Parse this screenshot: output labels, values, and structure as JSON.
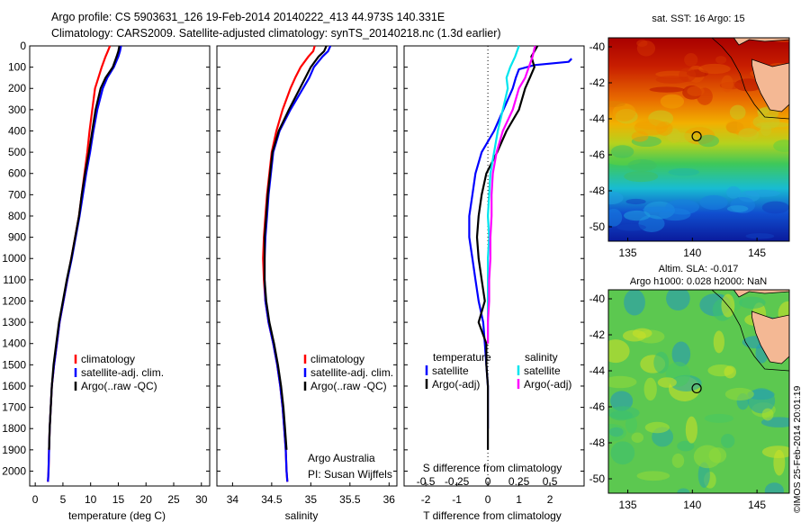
{
  "header": {
    "line1": "Argo profile: CS 5903631_126 19-Feb-2014 20140222_413 44.973S 140.331E",
    "line2": "Climatology: CARS2009. Satellite-adjusted climatology: synTS_20140218.nc (1.3d earlier)"
  },
  "side_label": "©IMOS 25-Feb-2014 20:01:19",
  "colors": {
    "climatology": "#ff0000",
    "satellite": "#0000ff",
    "argo": "#000000",
    "cyan": "#00e5ee",
    "magenta": "#ff00ff"
  },
  "chart_data": [
    {
      "type": "line",
      "panel": "temperature",
      "xlabel": "temperature (deg C)",
      "ylabel": "",
      "xlim": [
        -1,
        31.5
      ],
      "ylim": [
        2070,
        0
      ],
      "xticks": [
        0,
        5,
        10,
        15,
        20,
        25,
        30
      ],
      "yticks": [
        0,
        100,
        200,
        300,
        400,
        500,
        600,
        700,
        800,
        900,
        1000,
        1100,
        1200,
        1300,
        1400,
        1500,
        1600,
        1700,
        1800,
        1900,
        2000
      ],
      "legend": [
        "climatology",
        "satellite-adj. clim.",
        "Argo(..raw -QC)"
      ],
      "series": [
        {
          "name": "climatology",
          "x": [
            13.5,
            13.1,
            12.7,
            12.0,
            11.4,
            10.8,
            10.3,
            9.8,
            9.4,
            8.9,
            8.4,
            7.9,
            7.2,
            6.5,
            5.8,
            5.1,
            4.4,
            3.9,
            3.4,
            3.0,
            2.8,
            2.6,
            2.5,
            2.4,
            2.3
          ],
          "depth": [
            0,
            25,
            50,
            100,
            150,
            200,
            300,
            400,
            500,
            600,
            700,
            800,
            900,
            1000,
            1100,
            1200,
            1300,
            1400,
            1500,
            1600,
            1700,
            1800,
            1900,
            2000,
            2050
          ]
        },
        {
          "name": "satellite-adj. clim.",
          "x": [
            15.5,
            15.3,
            15.0,
            14.2,
            13.0,
            12.2,
            11.2,
            10.5,
            9.9,
            9.2,
            8.6,
            8.0,
            7.3,
            6.6,
            5.8,
            5.1,
            4.4,
            3.9,
            3.4,
            3.0,
            2.8,
            2.6,
            2.5,
            2.4,
            2.3
          ],
          "depth": [
            0,
            25,
            50,
            100,
            150,
            200,
            300,
            400,
            500,
            600,
            700,
            800,
            900,
            1000,
            1100,
            1200,
            1300,
            1400,
            1500,
            1600,
            1700,
            1800,
            1900,
            2000,
            2050
          ]
        },
        {
          "name": "Argo(..raw -QC)",
          "x": [
            15.2,
            15.0,
            14.7,
            14.0,
            12.7,
            11.8,
            10.9,
            10.3,
            9.7,
            9.0,
            8.4,
            7.9,
            7.2,
            6.5,
            5.7,
            5.0,
            4.3,
            3.8,
            3.3,
            3.0,
            2.8,
            2.6,
            2.5
          ],
          "depth": [
            0,
            25,
            50,
            100,
            150,
            200,
            300,
            400,
            500,
            600,
            700,
            800,
            900,
            1000,
            1100,
            1200,
            1300,
            1400,
            1500,
            1600,
            1700,
            1800,
            1900
          ]
        }
      ]
    },
    {
      "type": "line",
      "panel": "salinity",
      "xlabel": "salinity",
      "ylabel": "",
      "xlim": [
        33.8,
        36.1
      ],
      "ylim": [
        2070,
        0
      ],
      "xticks": [
        34,
        34.5,
        35,
        35.5,
        36
      ],
      "xticklabels": [
        "34",
        "34.5",
        "35",
        "35.5",
        "36"
      ],
      "legend": [
        "climatology",
        "satellite-adj. clim.",
        "Argo(..raw -QC)"
      ],
      "annotation": [
        "Argo Australia",
        "PI: Susan Wijffels"
      ],
      "series": [
        {
          "name": "climatology",
          "x": [
            35.05,
            35.03,
            34.97,
            34.87,
            34.8,
            34.74,
            34.64,
            34.56,
            34.5,
            34.47,
            34.44,
            34.42,
            34.4,
            34.39,
            34.4,
            34.42,
            34.46,
            34.52,
            34.57,
            34.61,
            34.64,
            34.66,
            34.68,
            34.69,
            34.7
          ],
          "depth": [
            0,
            25,
            50,
            100,
            150,
            200,
            300,
            400,
            500,
            600,
            700,
            800,
            900,
            1000,
            1100,
            1200,
            1300,
            1400,
            1500,
            1600,
            1700,
            1800,
            1900,
            2000,
            2050
          ]
        },
        {
          "name": "satellite-adj. clim.",
          "x": [
            35.25,
            35.22,
            35.15,
            35.04,
            34.98,
            34.9,
            34.74,
            34.6,
            34.52,
            34.49,
            34.46,
            34.44,
            34.42,
            34.41,
            34.41,
            34.42,
            34.46,
            34.52,
            34.57,
            34.61,
            34.64,
            34.66,
            34.68,
            34.69,
            34.7
          ],
          "depth": [
            0,
            25,
            50,
            100,
            150,
            200,
            300,
            400,
            500,
            600,
            700,
            800,
            900,
            1000,
            1100,
            1200,
            1300,
            1400,
            1500,
            1600,
            1700,
            1800,
            1900,
            2000,
            2050
          ]
        },
        {
          "name": "Argo(..raw -QC)",
          "x": [
            35.2,
            35.17,
            35.1,
            35.0,
            34.93,
            34.86,
            34.72,
            34.59,
            34.51,
            34.48,
            34.45,
            34.43,
            34.41,
            34.41,
            34.41,
            34.43,
            34.47,
            34.53,
            34.58,
            34.62,
            34.65,
            34.67,
            34.69
          ],
          "depth": [
            0,
            25,
            50,
            100,
            150,
            200,
            300,
            400,
            500,
            600,
            700,
            800,
            900,
            1000,
            1100,
            1200,
            1300,
            1400,
            1500,
            1600,
            1700,
            1800,
            1900
          ]
        }
      ]
    },
    {
      "type": "line",
      "panel": "difference",
      "xlabel": "T difference from climatology",
      "xlabel2": "S difference from climatology",
      "xlim": [
        -2.7,
        3.1
      ],
      "ylim": [
        2070,
        0
      ],
      "xticks": [
        -2,
        -1,
        0,
        1,
        2
      ],
      "xticks_s": [
        -0.5,
        -0.25,
        0,
        0.25,
        0.5
      ],
      "xticklabels_s": [
        "-0.5",
        "-0.25",
        "0",
        "0.25",
        "0.5"
      ],
      "legend_t": {
        "title": "temperature",
        "items": [
          "satellite",
          "Argo(-adj)"
        ]
      },
      "legend_s": {
        "title": "salinity",
        "items": [
          "satellite",
          "Argo(-adj)"
        ]
      },
      "series": [
        {
          "name": "temperature satellite",
          "x": [
            2.7,
            2.6,
            1.5,
            1.0,
            0.9,
            0.8,
            0.5,
            0.2,
            -0.2,
            -0.4,
            -0.5,
            -0.6,
            -0.6,
            -0.5,
            -0.4,
            -0.3,
            -0.15,
            -0.1,
            -0.05,
            0.0,
            0.0,
            0.0
          ],
          "depth": [
            60,
            75,
            90,
            110,
            150,
            200,
            300,
            400,
            500,
            600,
            700,
            800,
            900,
            1000,
            1100,
            1200,
            1300,
            1400,
            1500,
            1600,
            1700,
            1800
          ]
        },
        {
          "name": "temperature Argo(-adj)",
          "x": [
            1.6,
            1.4,
            1.5,
            1.35,
            1.2,
            1.0,
            0.6,
            0.3,
            -0.05,
            -0.2,
            -0.3,
            -0.35,
            -0.3,
            -0.2,
            -0.1,
            -0.3,
            -0.05,
            -0.05,
            0.0,
            0.0,
            0.0,
            0.0
          ],
          "depth": [
            0,
            50,
            100,
            150,
            200,
            300,
            400,
            500,
            600,
            700,
            800,
            900,
            1000,
            1100,
            1200,
            1300,
            1400,
            1500,
            1600,
            1700,
            1800,
            1900
          ]
        },
        {
          "name": "salinity satellite",
          "x": [
            0.25,
            0.22,
            0.18,
            0.15,
            0.16,
            0.12,
            0.08,
            0.05,
            0.02,
            0.01,
            0.0,
            0.01,
            0.0,
            0.0,
            0.0,
            0.0,
            0.0
          ],
          "depth": [
            0,
            50,
            100,
            150,
            200,
            300,
            400,
            500,
            600,
            700,
            800,
            900,
            1000,
            1100,
            1200,
            1300,
            1400
          ]
        },
        {
          "name": "salinity Argo(-adj)",
          "x": [
            0.38,
            0.36,
            0.33,
            0.3,
            0.25,
            0.2,
            0.12,
            0.07,
            0.04,
            0.03,
            0.03,
            0.02,
            0.02,
            0.01,
            0.01,
            0.0,
            0.0
          ],
          "depth": [
            0,
            50,
            100,
            150,
            200,
            300,
            400,
            500,
            600,
            700,
            800,
            900,
            1000,
            1100,
            1200,
            1300,
            1400
          ]
        }
      ]
    },
    {
      "type": "heatmap",
      "panel": "map-sst",
      "title": "sat. SST: 16 Argo: 15",
      "xlim": [
        133.5,
        147.5
      ],
      "ylim": [
        -50.8,
        -39.5
      ],
      "xticks": [
        135,
        140,
        145
      ],
      "yticks": [
        -40,
        -42,
        -44,
        -46,
        -48,
        -50
      ],
      "argo_position": {
        "lon": 140.331,
        "lat": -44.973
      }
    },
    {
      "type": "heatmap",
      "panel": "map-sla",
      "title": "Altim. SLA: -0.017",
      "subtitle": "Argo h1000: 0.028 h2000: NaN",
      "xlim": [
        133.5,
        147.5
      ],
      "ylim": [
        -50.8,
        -39.5
      ],
      "xticks": [
        135,
        140,
        145
      ],
      "yticks": [
        -40,
        -42,
        -44,
        -46,
        -48,
        -50
      ],
      "argo_position": {
        "lon": 140.331,
        "lat": -44.973
      }
    }
  ]
}
